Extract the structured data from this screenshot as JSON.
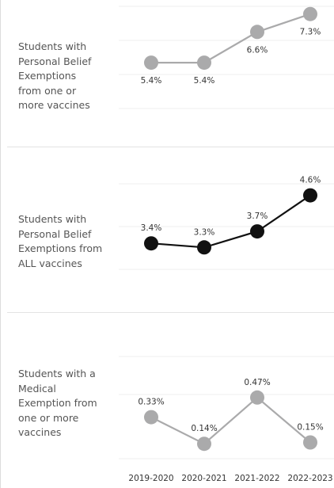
{
  "chart_data": {
    "type": "line",
    "categories": [
      "2019-2020",
      "2020-2021",
      "2021-2022",
      "2022-2023"
    ],
    "panels": [
      {
        "label": "Students with\nPersonal Belief\nExemptions\nfrom one or\nmore vaccines",
        "values": [
          5.4,
          5.4,
          6.6,
          7.3
        ],
        "value_labels": [
          "5.4%",
          "5.4%",
          "6.6%",
          "7.3%"
        ],
        "ylim": [
          5.0,
          7.6
        ],
        "color": "#aaaaab"
      },
      {
        "label": "Students with\nPersonal Belief\nExemptions from\nALL vaccines",
        "values": [
          3.4,
          3.3,
          3.7,
          4.6
        ],
        "value_labels": [
          "3.4%",
          "3.3%",
          "3.7%",
          "4.6%"
        ],
        "ylim": [
          2.0,
          5.6
        ],
        "color": "#111111"
      },
      {
        "label": "Students with a\nMedical\nExemption from\none or more\nvaccines",
        "values": [
          0.33,
          0.14,
          0.47,
          0.15
        ],
        "value_labels": [
          "0.33%",
          "0.14%",
          "0.47%",
          "0.15%"
        ],
        "ylim": [
          0,
          1.0
        ],
        "color": "#aaaaab"
      }
    ]
  }
}
